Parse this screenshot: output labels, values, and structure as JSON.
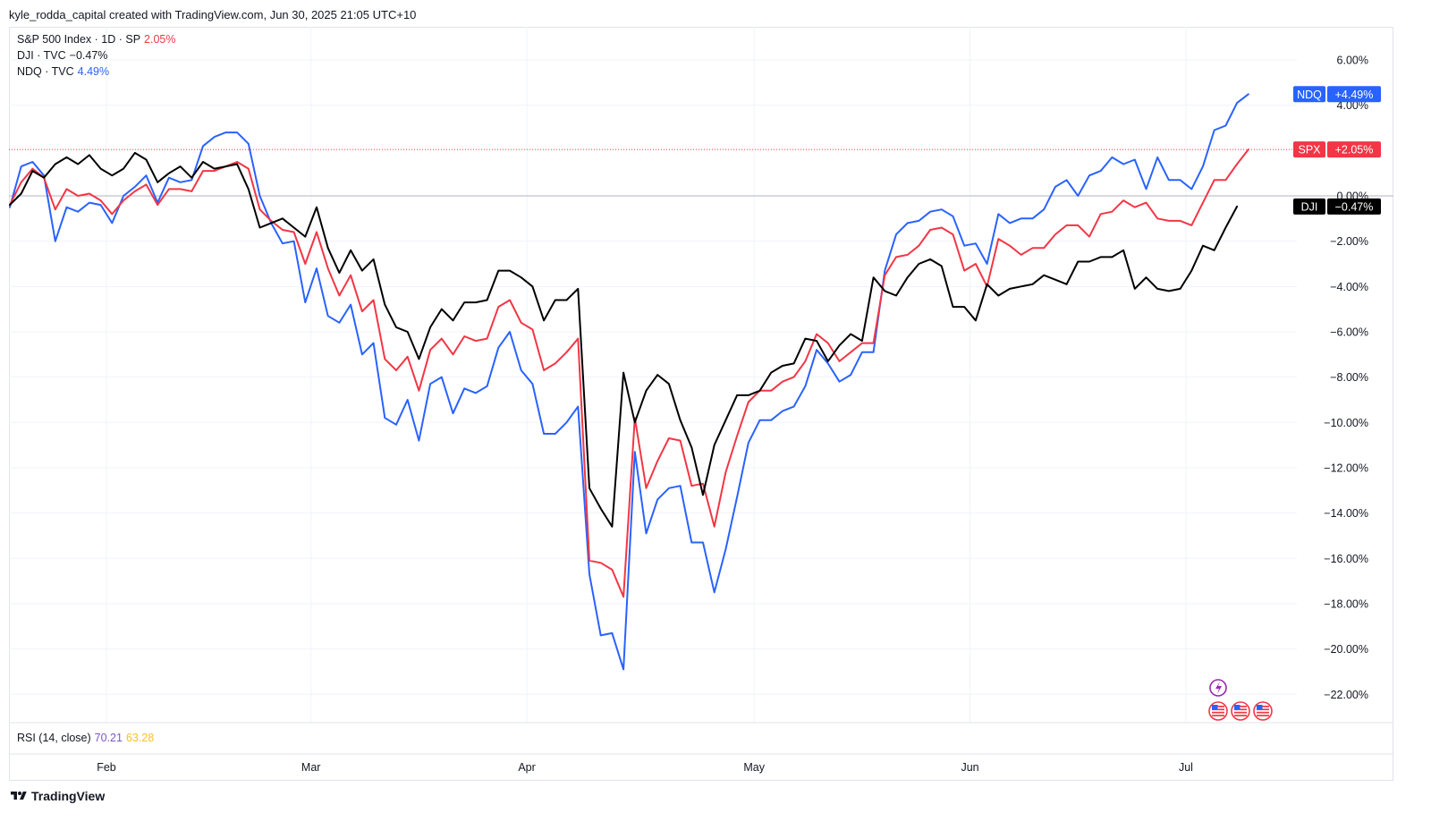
{
  "header": {
    "attribution": "kyle_rodda_capital created with TradingView.com, Jun 30, 2025 21:05 UTC+10"
  },
  "legend": [
    {
      "label": "S&P 500 Index · 1D · SP",
      "value": "2.05%",
      "color": "#f23645"
    },
    {
      "label": "DJI · TVC",
      "value": "−0.47%",
      "color": "#000000"
    },
    {
      "label": "NDQ · TVC",
      "value": "4.49%",
      "color": "#2962ff"
    }
  ],
  "rsi": {
    "label": "RSI (14, close)",
    "value1": "70.21",
    "value2": "63.28"
  },
  "price_tags": [
    {
      "symbol": "NDQ",
      "value": "+4.49%",
      "color": "#2962ff",
      "y": 4.49
    },
    {
      "symbol": "SPX",
      "value": "+2.05%",
      "color": "#f23645",
      "y": 2.05
    },
    {
      "symbol": "DJI",
      "value": "−0.47%",
      "color": "#000000",
      "y": -0.47
    }
  ],
  "footer": {
    "brand": "TradingView"
  },
  "colors": {
    "spx": "#f23645",
    "dji": "#000000",
    "ndq": "#2962ff",
    "grid": "#f0f3fa",
    "zero_line": "#b2b5be"
  },
  "chart_data": {
    "type": "line",
    "x_unit": "trading day index (0 = 2025-01-21)",
    "x_axis_labels": [
      {
        "label": "Feb",
        "x": 8.5
      },
      {
        "label": "Mar",
        "x": 26.5
      },
      {
        "label": "Apr",
        "x": 45.5
      },
      {
        "label": "May",
        "x": 65.5
      },
      {
        "label": "Jun",
        "x": 84.5
      },
      {
        "label": "Jul",
        "x": 103.5
      }
    ],
    "y_ticks": [
      "6.00%",
      "4.00%",
      "0.00%",
      "−2.00%",
      "−4.00%",
      "−6.00%",
      "−8.00%",
      "−10.00%",
      "−12.00%",
      "−14.00%",
      "−16.00%",
      "−18.00%",
      "−20.00%",
      "−22.00%"
    ],
    "y_tick_values": [
      6,
      4,
      0,
      -2,
      -4,
      -6,
      -8,
      -10,
      -12,
      -14,
      -16,
      -18,
      -20,
      -22
    ],
    "ylim": [
      -23,
      7
    ],
    "xlim": [
      -0.1,
      115
    ],
    "series": [
      {
        "name": "NDQ",
        "color": "#2962ff",
        "values": [
          -0.5,
          1.3,
          1.5,
          0.9,
          -2.0,
          -0.5,
          -0.7,
          -0.3,
          -0.4,
          -1.2,
          0.0,
          0.4,
          0.9,
          -0.3,
          0.8,
          0.6,
          0.7,
          2.2,
          2.6,
          2.8,
          2.8,
          2.3,
          0.0,
          -1.2,
          -2.1,
          -2.0,
          -4.7,
          -3.2,
          -5.3,
          -5.6,
          -4.8,
          -7.0,
          -6.5,
          -9.8,
          -10.1,
          -9.0,
          -10.8,
          -8.3,
          -8.0,
          -9.6,
          -8.5,
          -8.7,
          -8.4,
          -6.7,
          -6.0,
          -7.7,
          -8.3,
          -10.5,
          -10.5,
          -10.0,
          -9.3,
          -16.7,
          -19.4,
          -19.3,
          -20.9,
          -11.3,
          -14.9,
          -13.4,
          -12.9,
          -12.8,
          -15.3,
          -15.3,
          -17.5,
          -15.6,
          -13.3,
          -10.9,
          -9.9,
          -9.9,
          -9.5,
          -9.3,
          -8.4,
          -6.8,
          -7.4,
          -8.2,
          -7.9,
          -6.9,
          -6.9,
          -3.3,
          -1.7,
          -1.2,
          -1.1,
          -0.7,
          -0.6,
          -0.9,
          -2.2,
          -2.1,
          -3.0,
          -0.8,
          -1.2,
          -1.0,
          -1.0,
          -0.6,
          0.4,
          0.7,
          0.0,
          0.9,
          1.1,
          1.7,
          1.4,
          1.6,
          0.3,
          1.7,
          0.7,
          0.7,
          0.3,
          1.3,
          2.9,
          3.1,
          4.1,
          4.49
        ]
      },
      {
        "name": "SPX",
        "color": "#f23645",
        "values": [
          -0.4,
          0.6,
          1.2,
          0.8,
          -0.6,
          0.3,
          0.0,
          0.1,
          -0.2,
          -0.8,
          -0.2,
          0.2,
          0.5,
          -0.4,
          0.3,
          0.3,
          0.2,
          1.1,
          1.1,
          1.3,
          1.5,
          1.2,
          -0.6,
          -1.1,
          -1.5,
          -1.6,
          -3.0,
          -1.6,
          -3.2,
          -4.4,
          -3.5,
          -5.1,
          -4.6,
          -7.2,
          -7.7,
          -7.1,
          -8.6,
          -6.8,
          -6.3,
          -7.0,
          -6.2,
          -6.4,
          -6.3,
          -4.9,
          -4.6,
          -5.6,
          -5.9,
          -7.7,
          -7.4,
          -6.9,
          -6.3,
          -16.1,
          -16.2,
          -16.5,
          -17.7,
          -9.8,
          -12.9,
          -11.7,
          -10.7,
          -10.8,
          -12.8,
          -12.7,
          -14.6,
          -12.2,
          -10.6,
          -9.1,
          -8.6,
          -8.6,
          -8.2,
          -8.0,
          -7.3,
          -6.1,
          -6.5,
          -7.3,
          -6.9,
          -6.5,
          -6.5,
          -3.5,
          -2.7,
          -2.6,
          -2.2,
          -1.5,
          -1.4,
          -1.7,
          -3.3,
          -3.0,
          -4.0,
          -1.9,
          -2.2,
          -2.6,
          -2.3,
          -2.3,
          -1.7,
          -1.3,
          -1.3,
          -1.8,
          -0.8,
          -0.7,
          -0.2,
          -0.5,
          -0.3,
          -1.0,
          -1.1,
          -1.1,
          -1.3,
          -0.3,
          0.7,
          0.7,
          1.4,
          2.05
        ]
      },
      {
        "name": "DJI",
        "color": "#000000",
        "values": [
          -0.4,
          0.1,
          1.1,
          0.8,
          1.4,
          1.7,
          1.4,
          1.8,
          1.2,
          0.9,
          1.2,
          1.9,
          1.6,
          0.6,
          1.0,
          1.3,
          0.8,
          1.5,
          1.2,
          1.3,
          1.4,
          0.3,
          -1.4,
          -1.2,
          -1.0,
          -1.4,
          -1.8,
          -0.5,
          -2.3,
          -3.4,
          -2.4,
          -3.3,
          -2.8,
          -4.8,
          -5.8,
          -6.0,
          -7.2,
          -5.8,
          -5.0,
          -5.5,
          -4.7,
          -4.7,
          -4.6,
          -3.3,
          -3.3,
          -3.6,
          -4.0,
          -5.5,
          -4.6,
          -4.6,
          -4.1,
          -12.9,
          -13.8,
          -14.6,
          -7.8,
          -10.0,
          -8.6,
          -7.9,
          -8.3,
          -9.9,
          -11.1,
          -13.2,
          -11.0,
          -9.9,
          -8.8,
          -8.8,
          -8.6,
          -7.8,
          -7.5,
          -7.4,
          -6.3,
          -6.4,
          -7.3,
          -6.6,
          -6.1,
          -6.4,
          -3.6,
          -4.2,
          -4.4,
          -3.6,
          -3.0,
          -2.8,
          -3.1,
          -4.9,
          -4.9,
          -5.5,
          -3.9,
          -4.4,
          -4.1,
          -4.0,
          -3.9,
          -3.5,
          -3.7,
          -3.9,
          -2.9,
          -2.9,
          -2.7,
          -2.7,
          -2.4,
          -4.1,
          -3.6,
          -4.1,
          -4.2,
          -4.1,
          -3.3,
          -2.2,
          -2.4,
          -1.4,
          -0.47
        ]
      }
    ]
  }
}
